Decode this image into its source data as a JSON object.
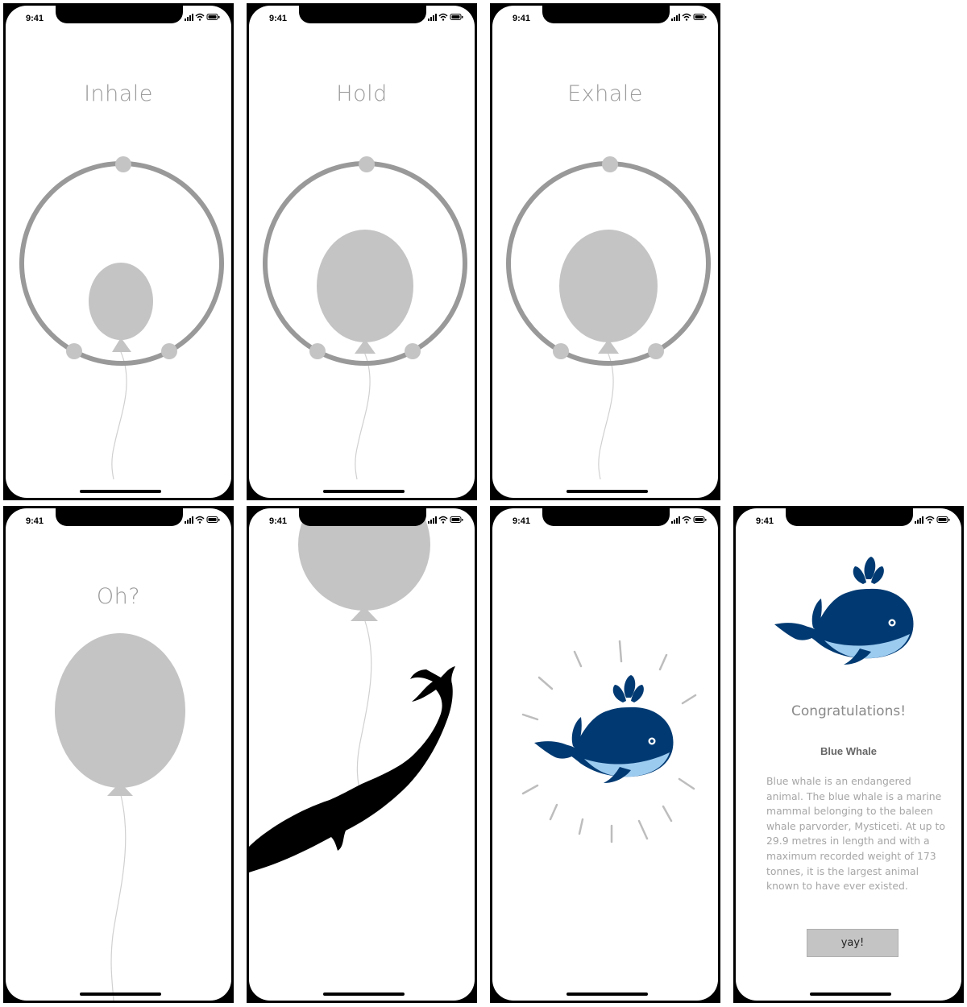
{
  "status_bar": {
    "time": "9:41"
  },
  "screens": {
    "inhale": {
      "title": "Inhale"
    },
    "hold": {
      "title": "Hold"
    },
    "exhale": {
      "title": "Exhale"
    },
    "oh": {
      "title": "Oh?"
    }
  },
  "result": {
    "congrats": "Congratulations!",
    "animal_name": "Blue Whale",
    "description": "Blue whale is an endangered animal. The blue whale is a marine mammal belonging to the baleen whale parvorder, Mysticeti. At up to 29.9 metres in length and with a maximum recorded weight of 173 tonnes, it is the largest animal known to have ever existed.",
    "button_label": "yay!"
  },
  "colors": {
    "balloon": "#c4c4c4",
    "ring": "#999999",
    "whale_dark": "#013a72",
    "whale_light": "#9ccbf0"
  },
  "icons": [
    "signal-icon",
    "wifi-icon",
    "battery-icon",
    "whale-icon",
    "whale-silhouette"
  ]
}
